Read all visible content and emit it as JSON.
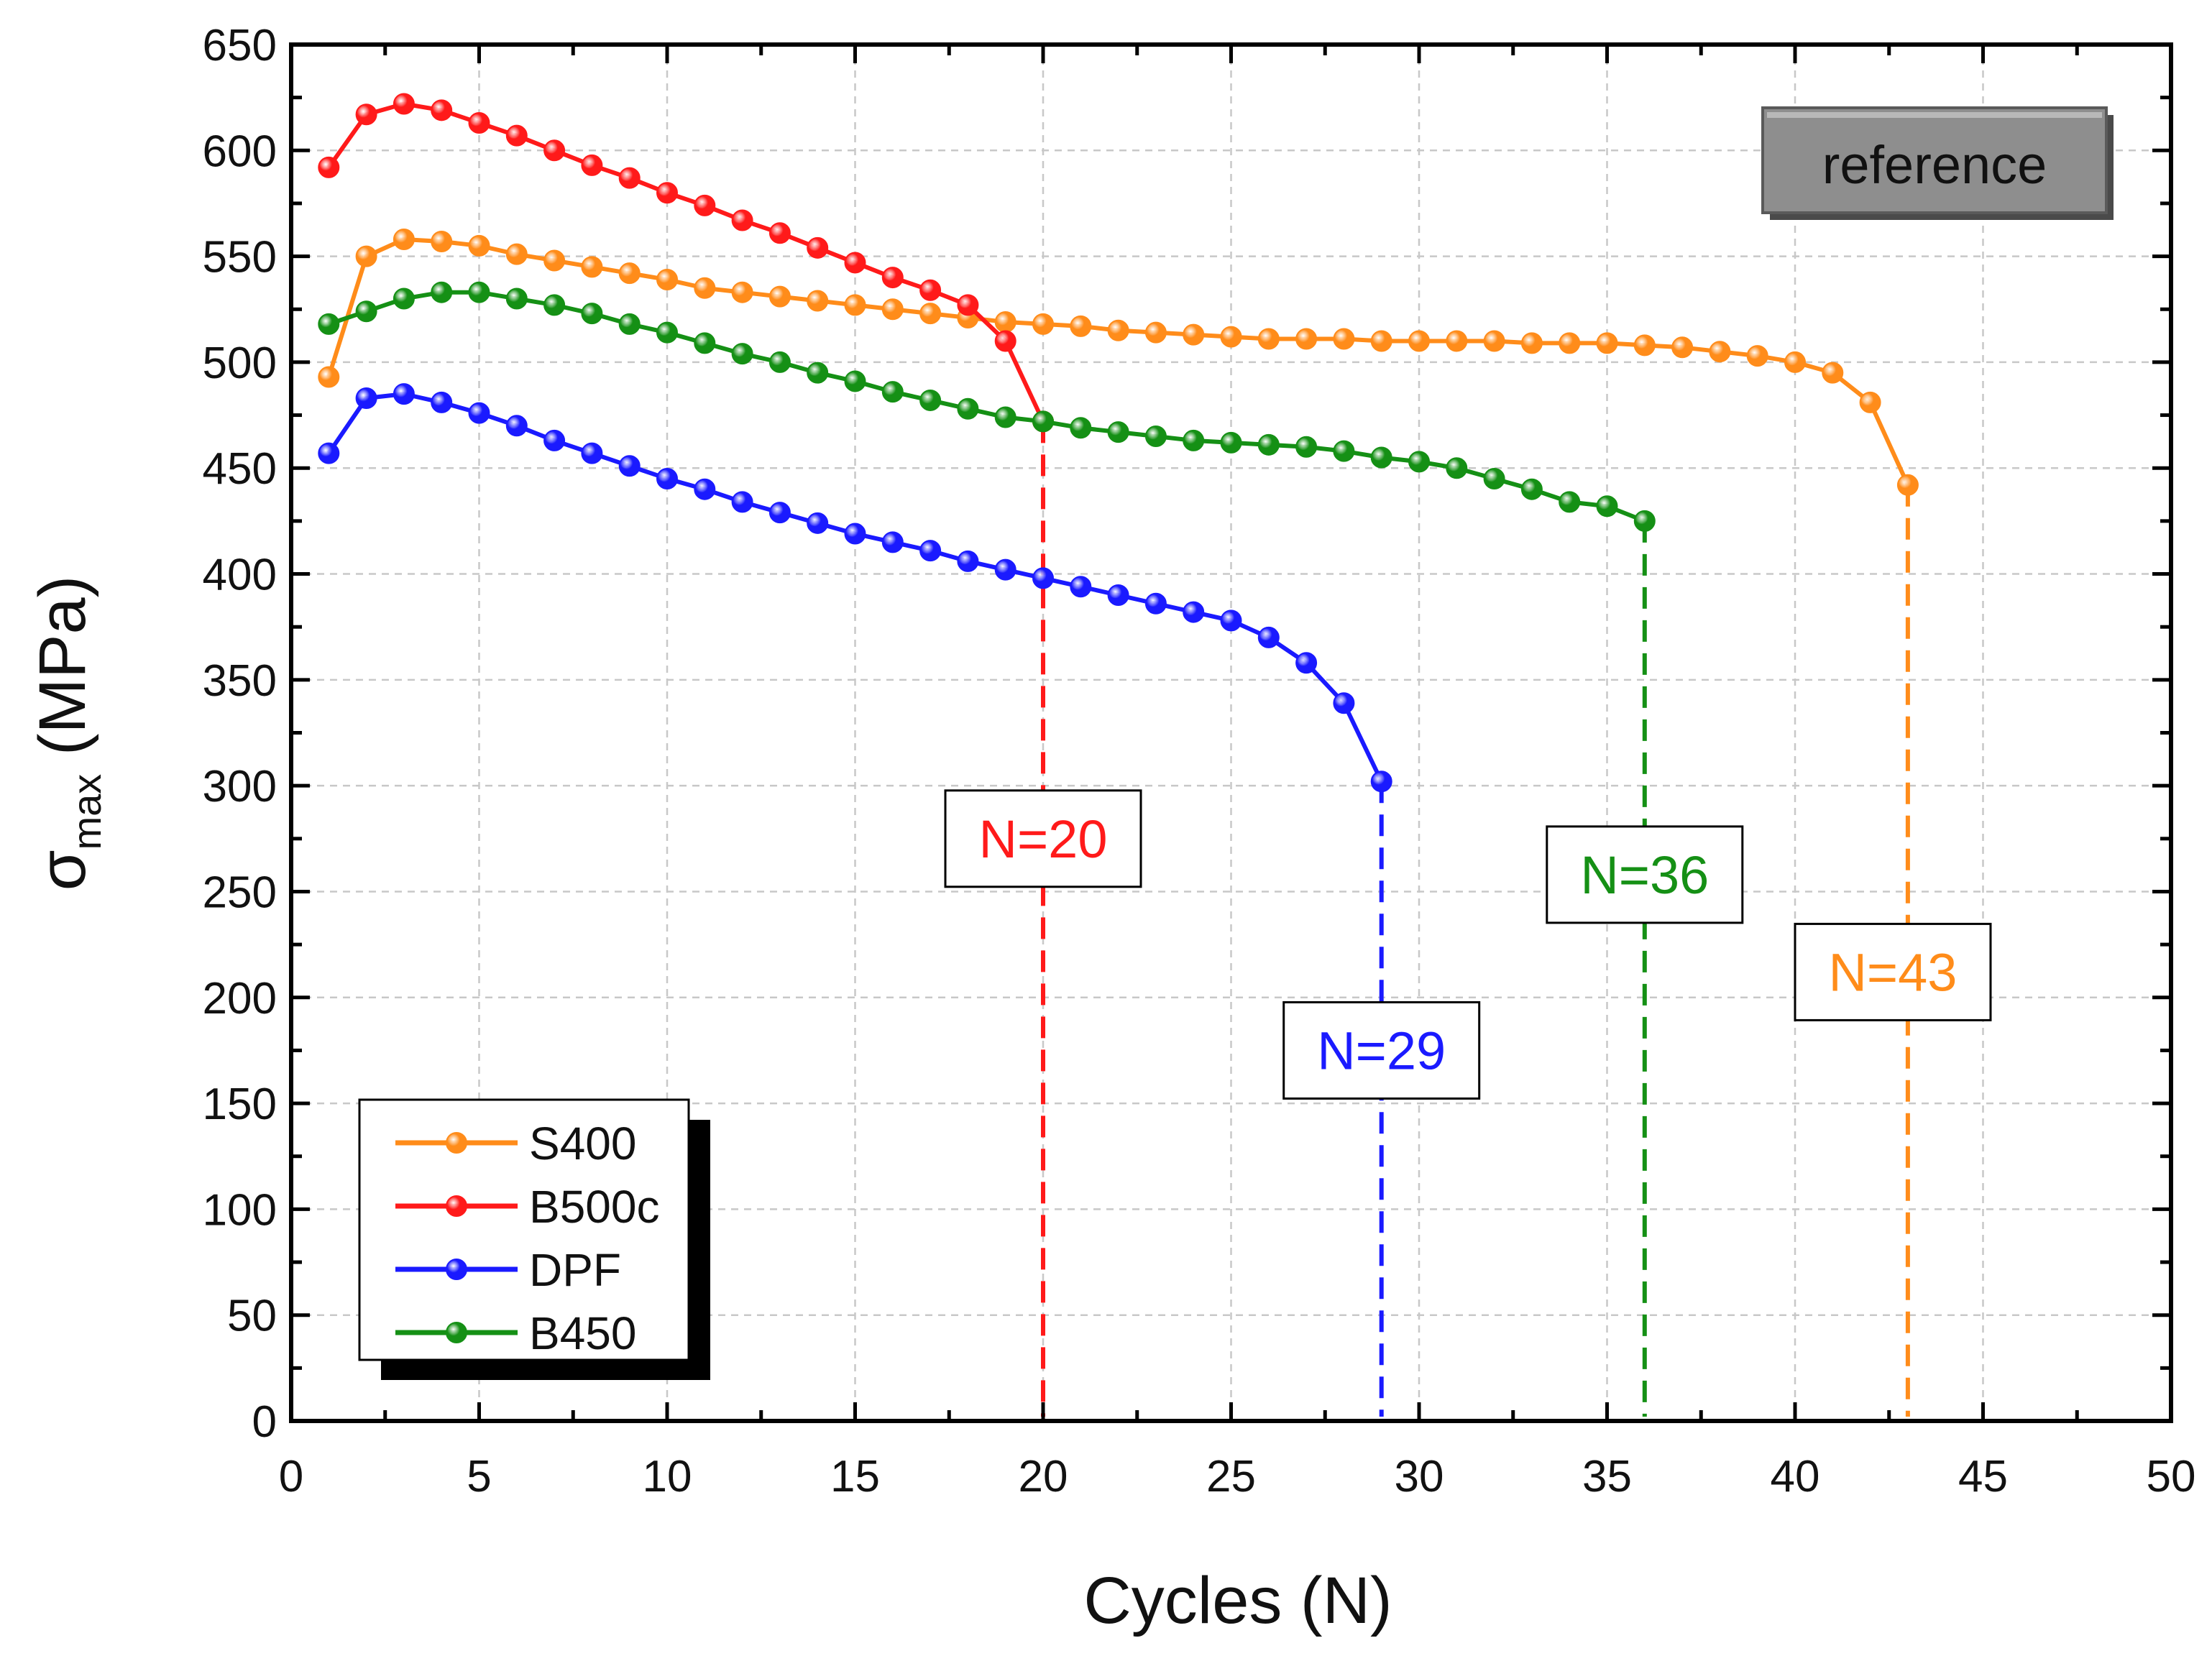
{
  "chart_data": {
    "type": "line",
    "title": "",
    "xlabel": "Cycles (N)",
    "ylabel": {
      "main": "σ",
      "sub": "max",
      "unit": " (MPa)"
    },
    "xlim": [
      0,
      50
    ],
    "ylim": [
      0,
      650
    ],
    "xticks": [
      0,
      5,
      10,
      15,
      20,
      25,
      30,
      35,
      40,
      45,
      50
    ],
    "yticks": [
      0,
      50,
      100,
      150,
      200,
      250,
      300,
      350,
      400,
      450,
      500,
      550,
      600,
      650
    ],
    "grid": true,
    "legend_position": "bottom-left",
    "reference_label": "reference",
    "series": [
      {
        "name": "S400",
        "color": "#ff8c1a",
        "x": [
          1,
          2,
          3,
          4,
          5,
          6,
          7,
          8,
          9,
          10,
          11,
          12,
          13,
          14,
          15,
          16,
          17,
          18,
          19,
          20,
          21,
          22,
          23,
          24,
          25,
          26,
          27,
          28,
          29,
          30,
          31,
          32,
          33,
          34,
          35,
          36,
          37,
          38,
          39,
          40,
          41,
          42,
          43
        ],
        "values": [
          493,
          550,
          558,
          557,
          555,
          551,
          548,
          545,
          542,
          539,
          535,
          533,
          531,
          529,
          527,
          525,
          523,
          521,
          519,
          518,
          517,
          515,
          514,
          513,
          512,
          511,
          511,
          511,
          510,
          510,
          510,
          510,
          509,
          509,
          509,
          508,
          507,
          505,
          503,
          500,
          495,
          481,
          442
        ],
        "failure_cycle": 43,
        "failure_label": "N=43"
      },
      {
        "name": "B500c",
        "color": "#ff1a1a",
        "x": [
          1,
          2,
          3,
          4,
          5,
          6,
          7,
          8,
          9,
          10,
          11,
          12,
          13,
          14,
          15,
          16,
          17,
          18,
          19,
          20
        ],
        "values": [
          592,
          617,
          622,
          619,
          613,
          607,
          600,
          593,
          587,
          580,
          574,
          567,
          561,
          554,
          547,
          540,
          534,
          527,
          510,
          472
        ],
        "failure_cycle": 20,
        "failure_label": "N=20"
      },
      {
        "name": "DPF",
        "color": "#1a1aff",
        "x": [
          1,
          2,
          3,
          4,
          5,
          6,
          7,
          8,
          9,
          10,
          11,
          12,
          13,
          14,
          15,
          16,
          17,
          18,
          19,
          20,
          21,
          22,
          23,
          24,
          25,
          26,
          27,
          28,
          29
        ],
        "values": [
          457,
          483,
          485,
          481,
          476,
          470,
          463,
          457,
          451,
          445,
          440,
          434,
          429,
          424,
          419,
          415,
          411,
          406,
          402,
          398,
          394,
          390,
          386,
          382,
          378,
          370,
          358,
          339,
          302
        ],
        "failure_cycle": 29,
        "failure_label": "N=29"
      },
      {
        "name": "B450",
        "color": "#159015",
        "x": [
          1,
          2,
          3,
          4,
          5,
          6,
          7,
          8,
          9,
          10,
          11,
          12,
          13,
          14,
          15,
          16,
          17,
          18,
          19,
          20,
          21,
          22,
          23,
          24,
          25,
          26,
          27,
          28,
          29,
          30,
          31,
          32,
          33,
          34,
          35,
          36
        ],
        "values": [
          518,
          524,
          530,
          533,
          533,
          530,
          527,
          523,
          518,
          514,
          509,
          504,
          500,
          495,
          491,
          486,
          482,
          478,
          474,
          472,
          469,
          467,
          465,
          463,
          462,
          461,
          460,
          458,
          455,
          453,
          450,
          445,
          440,
          434,
          432,
          425
        ],
        "failure_cycle": 36,
        "failure_label": "N=36"
      }
    ],
    "annotations": [
      {
        "series": "B500c",
        "text": "N=20",
        "anchor_x": 20,
        "anchor_y": 275
      },
      {
        "series": "DPF",
        "text": "N=29",
        "anchor_x": 29,
        "anchor_y": 175
      },
      {
        "series": "B450",
        "text": "N=36",
        "anchor_x": 36,
        "anchor_y": 258
      },
      {
        "series": "S400",
        "text": "N=43",
        "anchor_x": 42.6,
        "anchor_y": 212
      }
    ]
  }
}
